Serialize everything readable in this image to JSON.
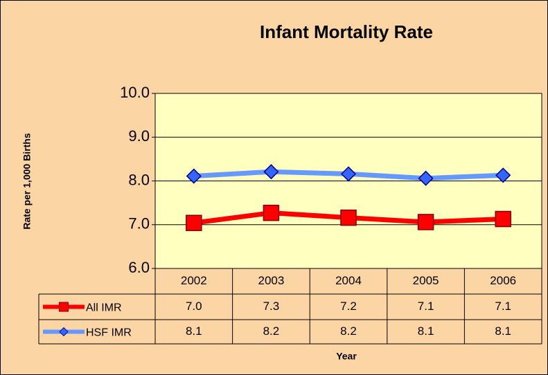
{
  "chart_data": {
    "type": "line",
    "title": "Infant Mortality Rate",
    "y_label": "Rate per 1,000 Births",
    "x_label": "Year",
    "categories": [
      "2002",
      "2003",
      "2004",
      "2005",
      "2006"
    ],
    "series": [
      {
        "name": "All IMR",
        "color": "#ff0000",
        "marker": "square",
        "values": [
          7.04,
          7.27,
          7.16,
          7.06,
          7.13
        ],
        "value_labels": [
          "7.0",
          "7.3",
          "7.2",
          "7.1",
          "7.1"
        ]
      },
      {
        "name": "HSF IMR",
        "color": "#6699ff",
        "marker": "diamond",
        "values": [
          8.11,
          8.21,
          8.16,
          8.06,
          8.13
        ],
        "value_labels": [
          "8.1",
          "8.2",
          "8.2",
          "8.1",
          "8.1"
        ]
      }
    ],
    "ylim": [
      6,
      10
    ],
    "yticks": [
      {
        "value": 6,
        "label": "6.0"
      },
      {
        "value": 7,
        "label": "7.0"
      },
      {
        "value": 8,
        "label": "8.0"
      },
      {
        "value": 9,
        "label": "9.0"
      },
      {
        "value": 10,
        "label": "10.0"
      }
    ],
    "grid": true
  }
}
